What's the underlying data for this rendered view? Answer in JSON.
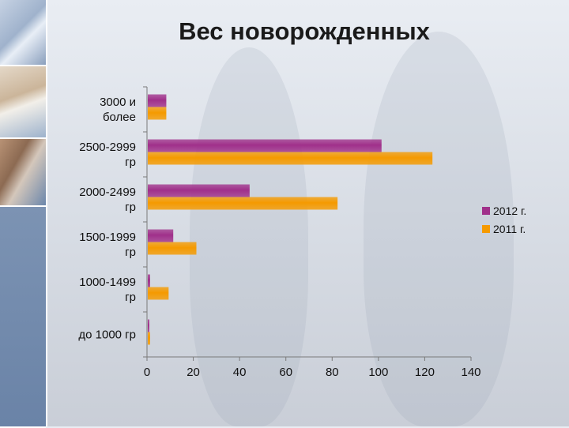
{
  "title": "Вес новорожденных",
  "chart_data": {
    "type": "bar",
    "orientation": "horizontal",
    "title": "Вес новорожденных",
    "categories": [
      [
        "3000 и",
        "более"
      ],
      [
        "2500-2999",
        "гр"
      ],
      [
        "2000-2499",
        "гр"
      ],
      [
        "1500-1999",
        "гр"
      ],
      [
        "1000-1499",
        "гр"
      ],
      [
        "до 1000 гр"
      ]
    ],
    "series": [
      {
        "name": "2012 г.",
        "color": "#a0308a",
        "values": [
          8,
          101,
          44,
          11,
          1,
          0
        ]
      },
      {
        "name": "2011 г.",
        "color": "#f59a00",
        "values": [
          8,
          123,
          82,
          21,
          9,
          1
        ]
      }
    ],
    "xlim": [
      0,
      140
    ],
    "xticks": [
      "0",
      "20",
      "40",
      "60",
      "80",
      "100",
      "120",
      "140"
    ],
    "grid": false,
    "legend_position": "right"
  }
}
